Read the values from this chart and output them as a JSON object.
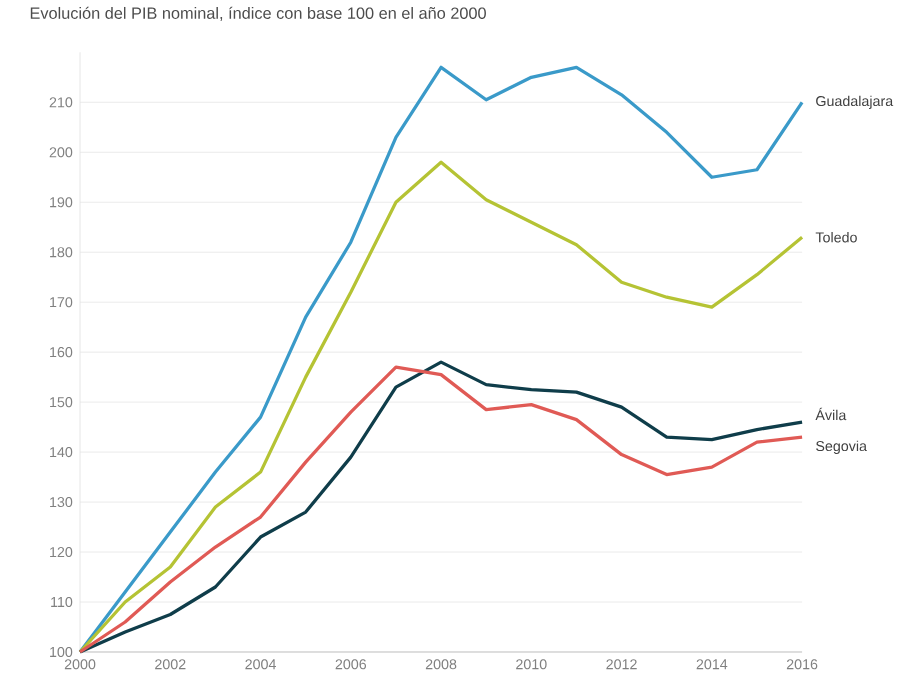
{
  "chart_data": {
    "type": "line",
    "title": "Evolución del PIB nominal, índice con base 100 en el año 2000",
    "x": [
      2000,
      2001,
      2002,
      2003,
      2004,
      2005,
      2006,
      2007,
      2008,
      2009,
      2010,
      2011,
      2012,
      2013,
      2014,
      2015,
      2016
    ],
    "series": [
      {
        "name": "Guadalajara",
        "color": "#3a9ac9",
        "values": [
          100,
          112,
          124,
          136,
          147,
          167,
          182,
          203,
          217,
          210.5,
          215,
          217,
          211.5,
          204,
          195,
          196.5,
          210
        ]
      },
      {
        "name": "Toledo",
        "color": "#b5c334",
        "values": [
          100,
          110,
          117,
          129,
          136,
          155,
          172,
          190,
          198,
          190.5,
          186,
          181.5,
          174,
          171,
          169,
          175.5,
          183
        ]
      },
      {
        "name": "Ávila",
        "color": "#0f3d4a",
        "values": [
          100,
          104,
          107.5,
          113,
          123,
          128,
          139,
          153,
          158,
          153.5,
          152.5,
          152,
          149,
          143,
          142.5,
          144.5,
          146
        ]
      },
      {
        "name": "Segovia",
        "color": "#e05a55",
        "values": [
          100,
          106,
          114,
          121,
          127,
          138,
          148,
          157,
          155.5,
          148.5,
          149.5,
          146.5,
          139.5,
          135.5,
          137,
          142,
          143
        ]
      }
    ],
    "xlim": [
      2000,
      2016
    ],
    "xticks": [
      2000,
      2002,
      2004,
      2006,
      2008,
      2010,
      2012,
      2014,
      2016
    ],
    "ylim": [
      100,
      220
    ],
    "yticks": [
      100,
      110,
      120,
      130,
      140,
      150,
      160,
      170,
      180,
      190,
      200,
      210
    ],
    "grid": "y",
    "legend": false,
    "marker": "none",
    "line_style": "solid"
  }
}
